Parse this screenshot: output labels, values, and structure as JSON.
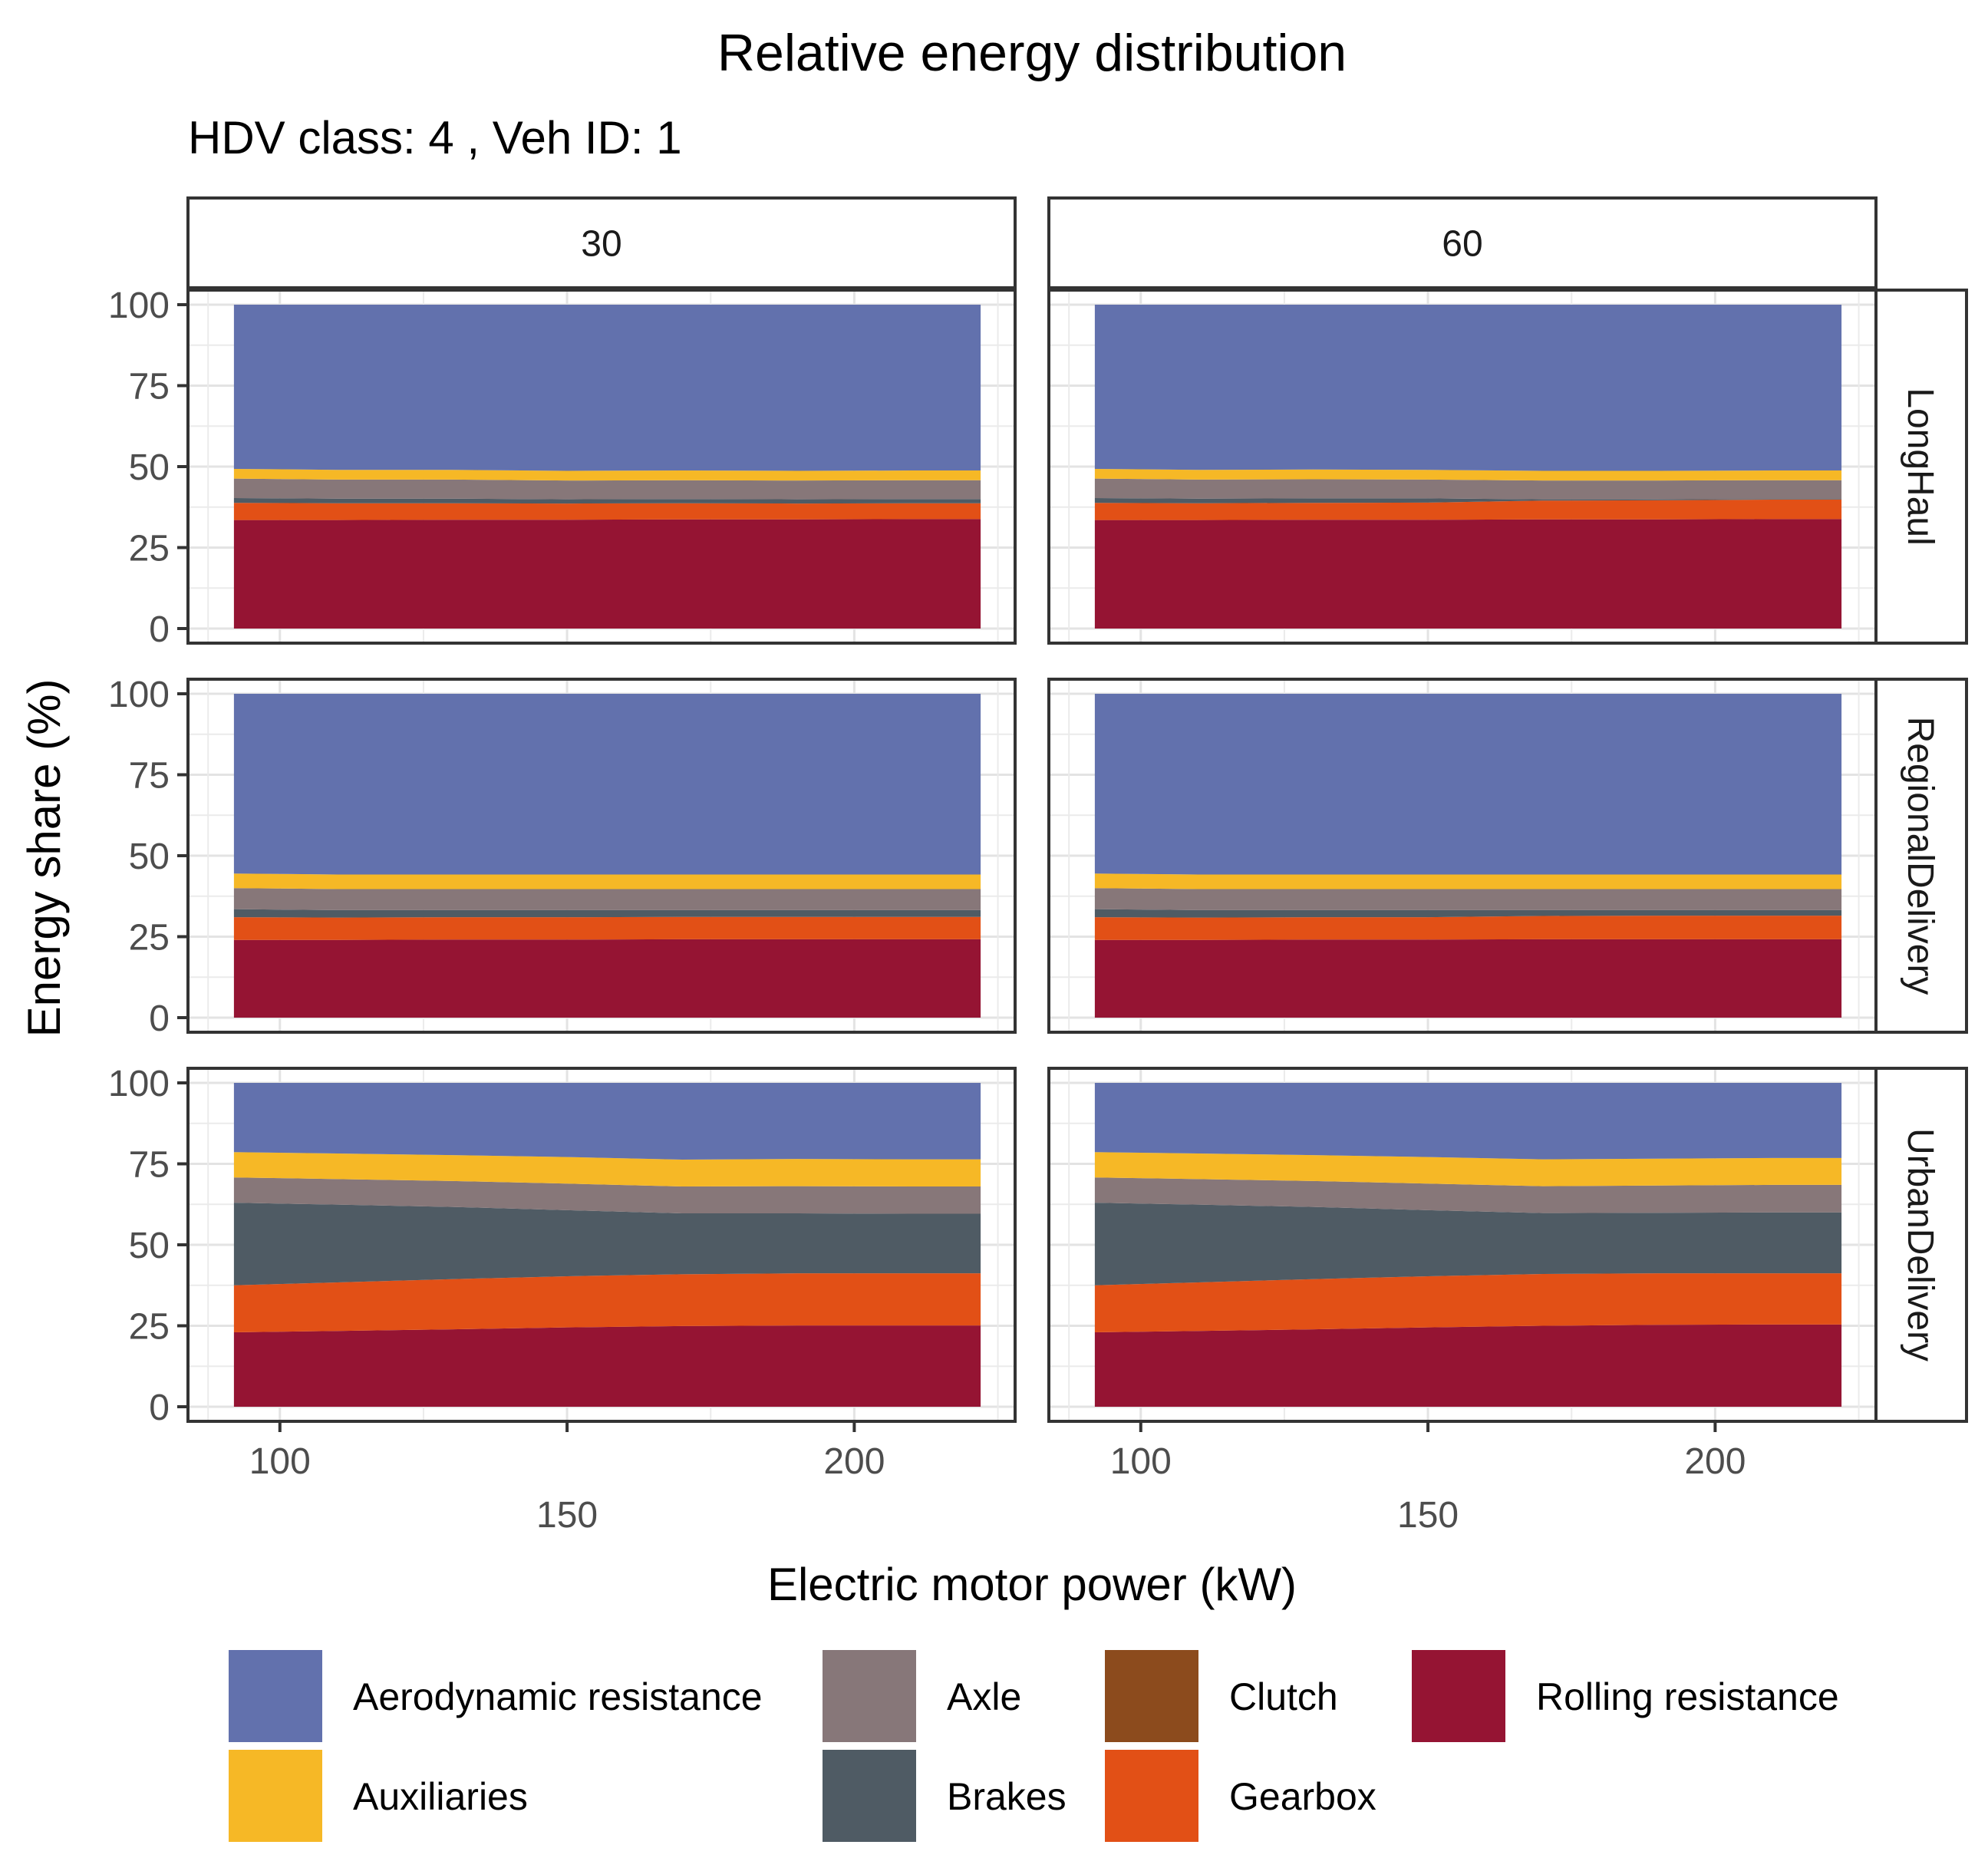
{
  "chart_data": {
    "type": "area",
    "stacked": true,
    "title": "Relative energy distribution",
    "subtitle": "HDV class: 4 , Veh ID: 1",
    "xlabel": "Electric motor power (kW)",
    "ylabel": "Energy share (%)",
    "xlim": [
      84,
      228
    ],
    "ylim": [
      -4.5,
      104.5
    ],
    "xticks": [
      100,
      150,
      200
    ],
    "xtick_labels": [
      "100",
      "150",
      "200"
    ],
    "yticks": [
      0,
      25,
      50,
      75,
      100
    ],
    "ytick_labels": [
      "0",
      "25",
      "50",
      "75",
      "100"
    ],
    "grid": true,
    "legend_position": "bottom",
    "x": [
      92,
      110,
      130,
      150,
      170,
      190,
      210,
      222
    ],
    "columns": [
      "30",
      "60"
    ],
    "rows": [
      "LongHaul",
      "RegionalDelivery",
      "UrbanDelivery"
    ],
    "categories": [
      "Rolling resistance",
      "Gearbox",
      "Clutch",
      "Brakes",
      "Axle",
      "Auxiliaries",
      "Aerodynamic resistance"
    ],
    "legend_order": [
      "Aerodynamic resistance",
      "Auxiliaries",
      "Axle",
      "Brakes",
      "Clutch",
      "Gearbox",
      "Rolling resistance"
    ],
    "colors": {
      "Aerodynamic resistance": "#6271ad",
      "Auxiliaries": "#f6b826",
      "Axle": "#877779",
      "Brakes": "#4f5b64",
      "Clutch": "#8c4b1d",
      "Gearbox": "#e25016",
      "Rolling resistance": "#951433"
    },
    "panels": [
      {
        "column": "30",
        "row": "LongHaul",
        "series": [
          {
            "name": "Rolling resistance",
            "values": [
              33.5,
              33.5,
              33.6,
              33.6,
              33.7,
              33.7,
              33.8,
              33.8
            ]
          },
          {
            "name": "Gearbox",
            "values": [
              5.3,
              5.2,
              5.1,
              5.0,
              5.0,
              4.9,
              4.9,
              4.9
            ]
          },
          {
            "name": "Clutch",
            "values": [
              0,
              0,
              0,
              0,
              0,
              0,
              0,
              0
            ]
          },
          {
            "name": "Brakes",
            "values": [
              1.5,
              1.4,
              1.4,
              1.3,
              1.3,
              1.3,
              1.3,
              1.3
            ]
          },
          {
            "name": "Axle",
            "values": [
              6.0,
              5.9,
              5.9,
              5.8,
              5.8,
              5.8,
              5.8,
              5.8
            ]
          },
          {
            "name": "Auxiliaries",
            "values": [
              3.0,
              3.0,
              3.0,
              3.0,
              3.0,
              3.0,
              3.0,
              3.0
            ]
          },
          {
            "name": "Aerodynamic resistance",
            "values": [
              50.7,
              51.0,
              51.0,
              51.3,
              51.2,
              51.3,
              51.2,
              51.2
            ]
          }
        ]
      },
      {
        "column": "60",
        "row": "LongHaul",
        "series": [
          {
            "name": "Rolling resistance",
            "values": [
              33.5,
              33.5,
              33.6,
              33.6,
              33.7,
              33.7,
              33.8,
              33.8
            ]
          },
          {
            "name": "Gearbox",
            "values": [
              5.3,
              5.2,
              5.2,
              5.3,
              5.8,
              5.9,
              6.0,
              6.0
            ]
          },
          {
            "name": "Clutch",
            "values": [
              0,
              0,
              0,
              0,
              0,
              0,
              0,
              0
            ]
          },
          {
            "name": "Brakes",
            "values": [
              1.5,
              1.4,
              1.4,
              1.3,
              0.4,
              0.3,
              0.2,
              0.2
            ]
          },
          {
            "name": "Axle",
            "values": [
              6.0,
              5.9,
              5.9,
              5.8,
              5.8,
              5.8,
              5.8,
              5.8
            ]
          },
          {
            "name": "Auxiliaries",
            "values": [
              3.0,
              3.0,
              3.0,
              3.0,
              3.0,
              3.0,
              3.0,
              3.0
            ]
          },
          {
            "name": "Aerodynamic resistance",
            "values": [
              50.7,
              51.0,
              50.9,
              51.0,
              51.3,
              51.3,
              51.2,
              51.2
            ]
          }
        ]
      },
      {
        "column": "30",
        "row": "RegionalDelivery",
        "series": [
          {
            "name": "Rolling resistance",
            "values": [
              24.0,
              24.0,
              24.1,
              24.1,
              24.2,
              24.2,
              24.2,
              24.2
            ]
          },
          {
            "name": "Gearbox",
            "values": [
              7.0,
              6.9,
              6.9,
              6.9,
              6.9,
              6.9,
              6.9,
              6.9
            ]
          },
          {
            "name": "Clutch",
            "values": [
              0,
              0,
              0,
              0,
              0,
              0,
              0,
              0
            ]
          },
          {
            "name": "Brakes",
            "values": [
              2.5,
              2.3,
              2.2,
              2.2,
              2.1,
              2.1,
              2.1,
              2.1
            ]
          },
          {
            "name": "Axle",
            "values": [
              6.5,
              6.5,
              6.5,
              6.5,
              6.5,
              6.5,
              6.5,
              6.5
            ]
          },
          {
            "name": "Auxiliaries",
            "values": [
              4.5,
              4.5,
              4.5,
              4.5,
              4.5,
              4.5,
              4.5,
              4.5
            ]
          },
          {
            "name": "Aerodynamic resistance",
            "values": [
              55.5,
              55.8,
              55.8,
              55.8,
              55.8,
              55.8,
              55.8,
              55.8
            ]
          }
        ]
      },
      {
        "column": "60",
        "row": "RegionalDelivery",
        "series": [
          {
            "name": "Rolling resistance",
            "values": [
              24.0,
              24.0,
              24.1,
              24.1,
              24.2,
              24.2,
              24.2,
              24.2
            ]
          },
          {
            "name": "Gearbox",
            "values": [
              7.0,
              6.9,
              6.9,
              6.9,
              7.2,
              7.3,
              7.3,
              7.3
            ]
          },
          {
            "name": "Clutch",
            "values": [
              0,
              0,
              0,
              0,
              0,
              0,
              0,
              0
            ]
          },
          {
            "name": "Brakes",
            "values": [
              2.5,
              2.3,
              2.2,
              2.2,
              1.8,
              1.7,
              1.7,
              1.7
            ]
          },
          {
            "name": "Axle",
            "values": [
              6.5,
              6.5,
              6.5,
              6.5,
              6.5,
              6.5,
              6.5,
              6.5
            ]
          },
          {
            "name": "Auxiliaries",
            "values": [
              4.5,
              4.5,
              4.5,
              4.5,
              4.5,
              4.5,
              4.5,
              4.5
            ]
          },
          {
            "name": "Aerodynamic resistance",
            "values": [
              55.5,
              55.8,
              55.8,
              55.8,
              55.8,
              55.8,
              55.8,
              55.8
            ]
          }
        ]
      },
      {
        "column": "30",
        "row": "UrbanDelivery",
        "series": [
          {
            "name": "Rolling resistance",
            "values": [
              23.0,
              23.4,
              23.9,
              24.5,
              24.9,
              25.1,
              25.1,
              25.1
            ]
          },
          {
            "name": "Gearbox",
            "values": [
              14.5,
              15.0,
              15.5,
              15.8,
              16.0,
              16.1,
              16.1,
              16.1
            ]
          },
          {
            "name": "Clutch",
            "values": [
              0,
              0,
              0,
              0,
              0,
              0,
              0,
              0
            ]
          },
          {
            "name": "Brakes",
            "values": [
              25.5,
              24.0,
              22.3,
              20.4,
              18.8,
              18.5,
              18.4,
              18.4
            ]
          },
          {
            "name": "Axle",
            "values": [
              7.8,
              7.9,
              8.0,
              8.2,
              8.3,
              8.4,
              8.4,
              8.4
            ]
          },
          {
            "name": "Auxiliaries",
            "values": [
              7.8,
              7.9,
              8.0,
              8.2,
              8.3,
              8.4,
              8.4,
              8.4
            ]
          },
          {
            "name": "Aerodynamic resistance",
            "values": [
              21.4,
              21.8,
              22.3,
              22.9,
              23.7,
              23.5,
              23.6,
              23.6
            ]
          }
        ]
      },
      {
        "column": "60",
        "row": "UrbanDelivery",
        "series": [
          {
            "name": "Rolling resistance",
            "values": [
              23.0,
              23.4,
              23.9,
              24.5,
              25.0,
              25.3,
              25.4,
              25.4
            ]
          },
          {
            "name": "Gearbox",
            "values": [
              14.5,
              15.0,
              15.5,
              15.8,
              16.0,
              15.9,
              15.8,
              15.8
            ]
          },
          {
            "name": "Clutch",
            "values": [
              0,
              0,
              0,
              0,
              0,
              0,
              0,
              0
            ]
          },
          {
            "name": "Brakes",
            "values": [
              25.5,
              24.0,
              22.3,
              20.4,
              18.8,
              18.7,
              18.8,
              18.8
            ]
          },
          {
            "name": "Axle",
            "values": [
              7.8,
              7.9,
              8.0,
              8.2,
              8.3,
              8.4,
              8.5,
              8.5
            ]
          },
          {
            "name": "Auxiliaries",
            "values": [
              7.8,
              7.9,
              8.0,
              8.2,
              8.3,
              8.3,
              8.3,
              8.3
            ]
          },
          {
            "name": "Aerodynamic resistance",
            "values": [
              21.4,
              21.8,
              22.3,
              22.9,
              23.6,
              23.4,
              23.2,
              23.2
            ]
          }
        ]
      }
    ]
  }
}
